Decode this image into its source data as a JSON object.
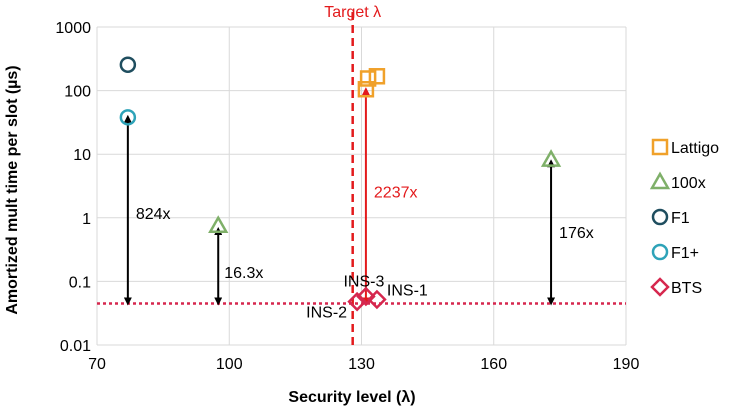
{
  "chart_data": {
    "type": "scatter",
    "xlabel": "Security level (λ)",
    "ylabel": "Amortized mult time per slot (µs)",
    "xlim": [
      70,
      190
    ],
    "xticks": [
      "70",
      "100",
      "130",
      "160",
      "190"
    ],
    "ylim": [
      0.01,
      1000
    ],
    "yscale": "log",
    "yticks": [
      "0.01",
      "0.1",
      "1",
      "10",
      "100",
      "1000"
    ],
    "grid": true,
    "legend_position": "right",
    "target_line": {
      "x": 128,
      "label": "Target λ",
      "color": "#e31a1c"
    },
    "bts_level_line": {
      "y": 0.045,
      "color": "#d6274e"
    },
    "series": [
      {
        "name": "Lattigo",
        "marker": "square",
        "color": "#f0a12a",
        "points": [
          {
            "x": 131,
            "y": 105
          },
          {
            "x": 131.5,
            "y": 155
          },
          {
            "x": 133.5,
            "y": 168
          }
        ]
      },
      {
        "name": "100x",
        "marker": "triangle",
        "color": "#7fb069",
        "points": [
          {
            "x": 97.5,
            "y": 0.75
          },
          {
            "x": 173,
            "y": 8.2
          }
        ]
      },
      {
        "name": "F1",
        "marker": "circle",
        "color": "#1f4e5f",
        "points": [
          {
            "x": 77,
            "y": 255
          }
        ]
      },
      {
        "name": "F1+",
        "marker": "circle",
        "color": "#2ea3b8",
        "points": [
          {
            "x": 77,
            "y": 38
          }
        ]
      },
      {
        "name": "BTS",
        "marker": "diamond",
        "color": "#d6274e",
        "points": [
          {
            "x": 129,
            "y": 0.048,
            "label": "INS-2"
          },
          {
            "x": 131,
            "y": 0.058,
            "label": "INS-3"
          },
          {
            "x": 133.5,
            "y": 0.052,
            "label": "INS-1"
          }
        ]
      }
    ],
    "arrows": [
      {
        "x": 77,
        "y_from": 36,
        "y_to": 0.045,
        "label": "824x",
        "color": "#000000"
      },
      {
        "x": 97.5,
        "y_from": 0.62,
        "y_to": 0.045,
        "label": "16.3x",
        "color": "#000000"
      },
      {
        "x": 131,
        "y_from": 98,
        "y_to": 0.045,
        "label": "2237x",
        "color": "#e31a1c"
      },
      {
        "x": 173,
        "y_from": 7.2,
        "y_to": 0.045,
        "label": "176x",
        "color": "#000000"
      }
    ]
  }
}
